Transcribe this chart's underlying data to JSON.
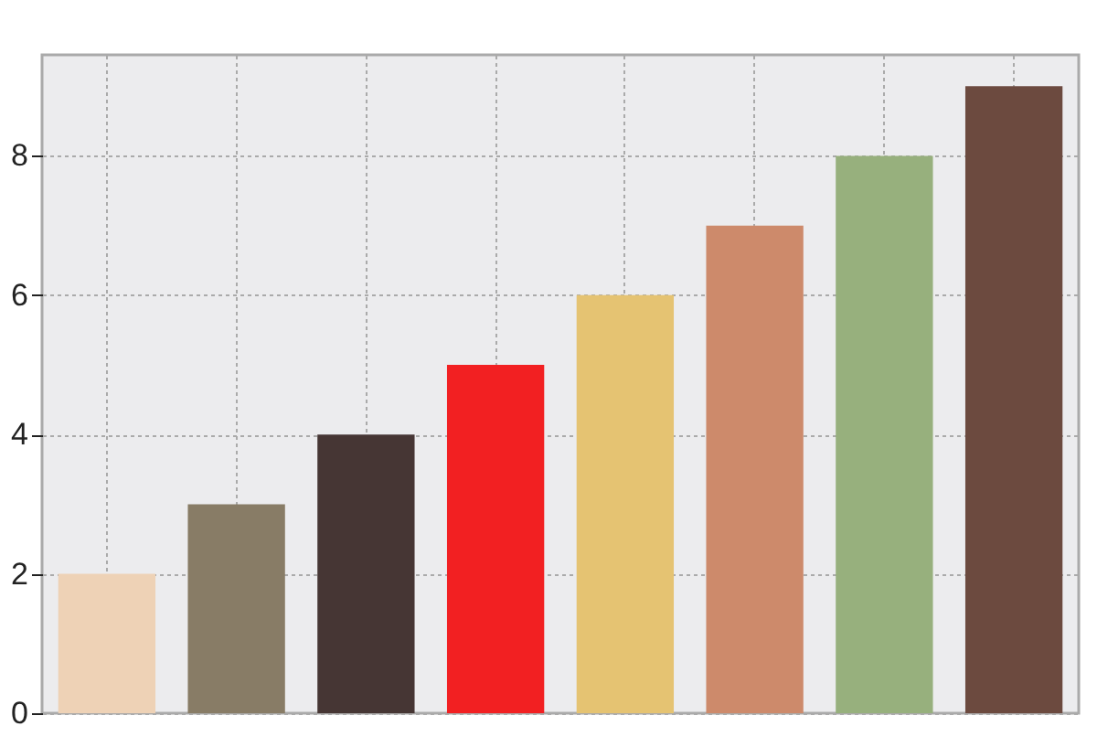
{
  "chart_data": {
    "type": "bar",
    "categories": [
      null,
      null,
      null,
      null,
      null,
      null,
      null,
      null
    ],
    "values": [
      2,
      3,
      4,
      5,
      6,
      7,
      8,
      9
    ],
    "colors": [
      "#eed2b6",
      "#887c66",
      "#463634",
      "#f22022",
      "#e5c372",
      "#cd8a6b",
      "#97b07d",
      "#6c4a3f"
    ],
    "ylim": [
      0,
      9.45
    ],
    "yticks": [
      0,
      2,
      4,
      6,
      8
    ],
    "grid": true
  }
}
